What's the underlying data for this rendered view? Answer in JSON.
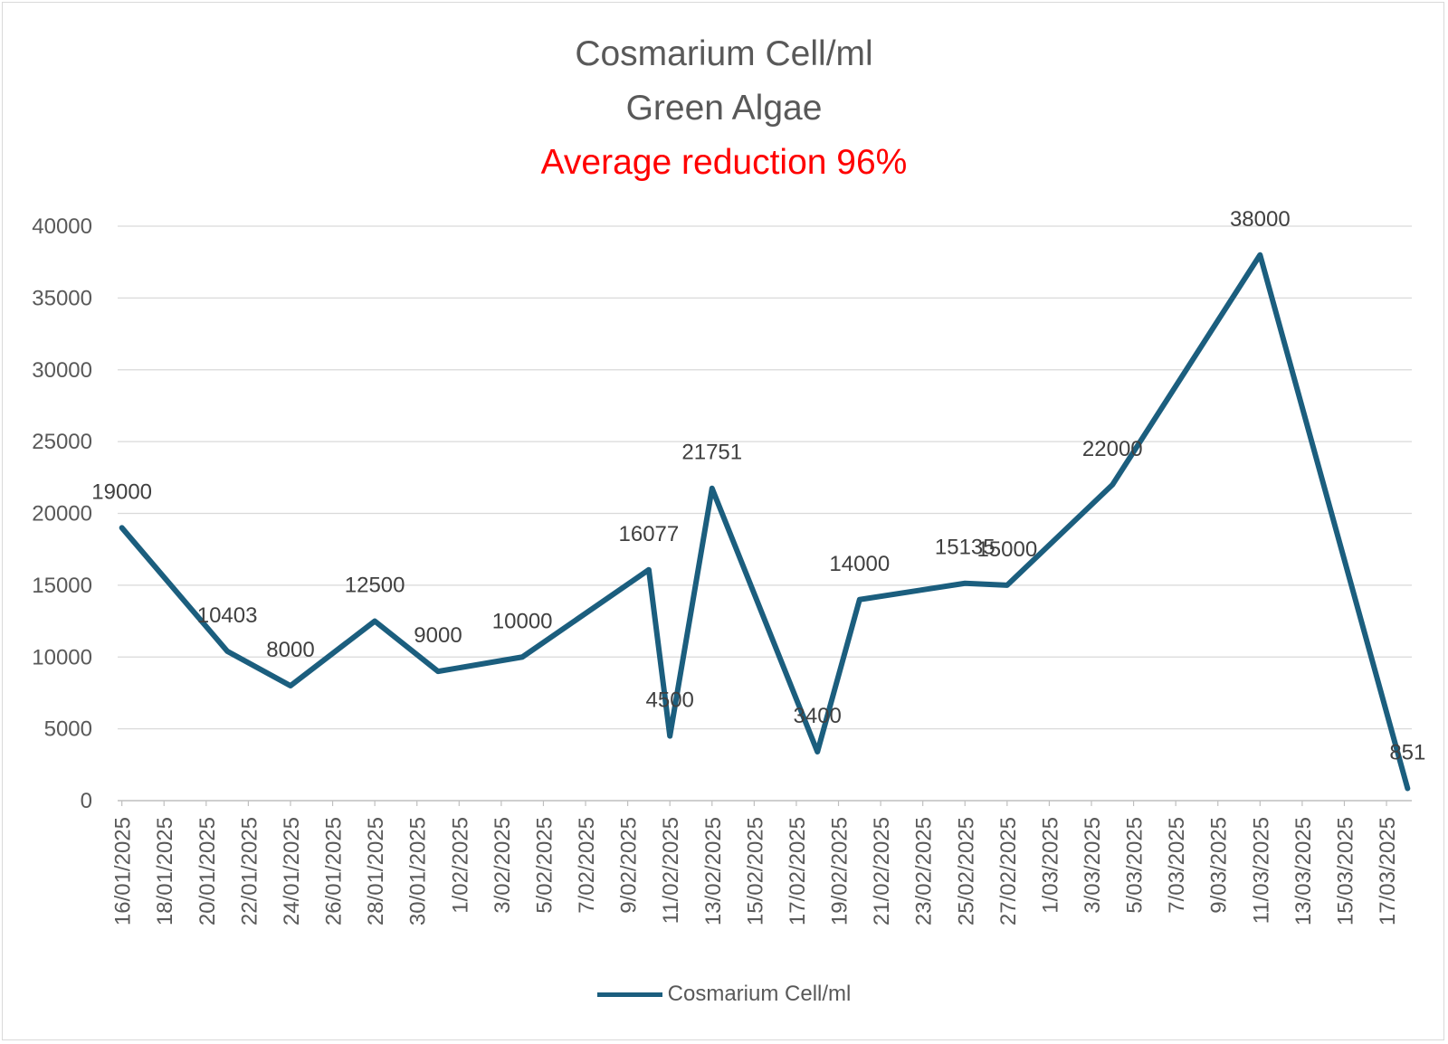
{
  "chart_data": {
    "type": "line",
    "title": "Cosmarium Cell/ml",
    "subtitle": "Green Algae",
    "annotation": "Average reduction 96%",
    "xlabel": "",
    "ylabel": "",
    "ylim": [
      0,
      40000
    ],
    "y_ticks": [
      0,
      5000,
      10000,
      15000,
      20000,
      25000,
      30000,
      35000,
      40000
    ],
    "x_range": [
      "16/01/2025",
      "18/03/2025"
    ],
    "x_tick_labels": [
      "16/01/2025",
      "18/01/2025",
      "20/01/2025",
      "22/01/2025",
      "24/01/2025",
      "26/01/2025",
      "28/01/2025",
      "30/01/2025",
      "1/02/2025",
      "3/02/2025",
      "5/02/2025",
      "7/02/2025",
      "9/02/2025",
      "11/02/2025",
      "13/02/2025",
      "15/02/2025",
      "17/02/2025",
      "19/02/2025",
      "21/02/2025",
      "23/02/2025",
      "25/02/2025",
      "27/02/2025",
      "1/03/2025",
      "3/03/2025",
      "5/03/2025",
      "7/03/2025",
      "9/03/2025",
      "11/03/2025",
      "13/03/2025",
      "15/03/2025",
      "17/03/2025"
    ],
    "grid": true,
    "legend_position": "bottom",
    "series": [
      {
        "name": "Cosmarium Cell/ml",
        "color": "#1b5e7e",
        "points": [
          {
            "x": "16/01/2025",
            "y": 19000,
            "label": "19000"
          },
          {
            "x": "21/01/2025",
            "y": 10403,
            "label": "10403"
          },
          {
            "x": "24/01/2025",
            "y": 8000,
            "label": "8000"
          },
          {
            "x": "28/01/2025",
            "y": 12500,
            "label": "12500"
          },
          {
            "x": "31/01/2025",
            "y": 9000,
            "label": "9000"
          },
          {
            "x": "4/02/2025",
            "y": 10000,
            "label": "10000"
          },
          {
            "x": "10/02/2025",
            "y": 16077,
            "label": "16077"
          },
          {
            "x": "11/02/2025",
            "y": 4500,
            "label": "4500"
          },
          {
            "x": "13/02/2025",
            "y": 21751,
            "label": "21751"
          },
          {
            "x": "18/02/2025",
            "y": 3400,
            "label": "3400"
          },
          {
            "x": "20/02/2025",
            "y": 14000,
            "label": "14000"
          },
          {
            "x": "25/02/2025",
            "y": 15135,
            "label": "15135"
          },
          {
            "x": "27/02/2025",
            "y": 15000,
            "label": "15000"
          },
          {
            "x": "4/03/2025",
            "y": 22000,
            "label": "22000"
          },
          {
            "x": "11/03/2025",
            "y": 38000,
            "label": "38000"
          },
          {
            "x": "18/03/2025",
            "y": 851,
            "label": "851"
          }
        ]
      }
    ]
  }
}
